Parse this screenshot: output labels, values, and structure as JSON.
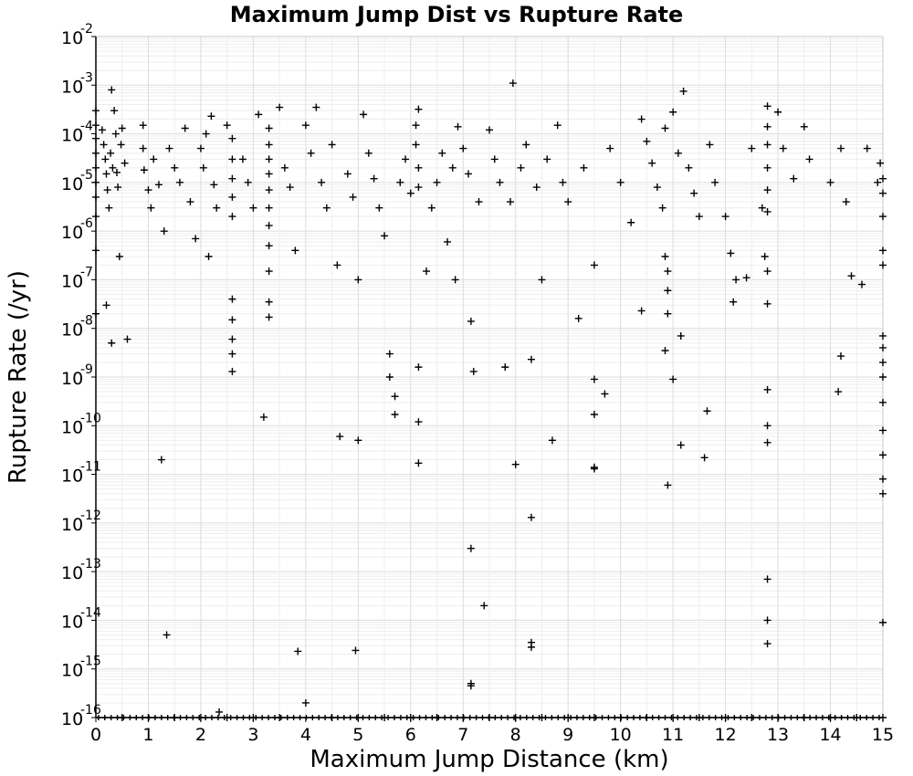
{
  "chart_data": {
    "type": "scatter",
    "title": "Maximum Jump Dist vs Rupture Rate",
    "xlabel": "Maximum Jump Distance (km)",
    "ylabel": "Rupture Rate (/yr)",
    "xlim": [
      0,
      15
    ],
    "ylim": [
      1e-16,
      0.01
    ],
    "yscale": "log",
    "grid": true,
    "marker": "+",
    "x_ticks": [
      "0",
      "1",
      "2",
      "3",
      "4",
      "5",
      "6",
      "7",
      "8",
      "9",
      "10",
      "11",
      "12",
      "13",
      "14",
      "15"
    ],
    "y_ticks": [
      {
        "base": "10",
        "exp": "-16"
      },
      {
        "base": "10",
        "exp": "-15"
      },
      {
        "base": "10",
        "exp": "-14"
      },
      {
        "base": "10",
        "exp": "-13"
      },
      {
        "base": "10",
        "exp": "-12"
      },
      {
        "base": "10",
        "exp": "-11"
      },
      {
        "base": "10",
        "exp": "-10"
      },
      {
        "base": "10",
        "exp": "-9"
      },
      {
        "base": "10",
        "exp": "-8"
      },
      {
        "base": "10",
        "exp": "-7"
      },
      {
        "base": "10",
        "exp": "-6"
      },
      {
        "base": "10",
        "exp": "-5"
      },
      {
        "base": "10",
        "exp": "-4"
      },
      {
        "base": "10",
        "exp": "-3"
      },
      {
        "base": "10",
        "exp": "-2"
      }
    ],
    "points": [
      [
        0.0,
        0.0003
      ],
      [
        0.0,
        0.00015
      ],
      [
        0.0,
        8e-05
      ],
      [
        0.0,
        4e-05
      ],
      [
        0.0,
        2e-05
      ],
      [
        0.0,
        1e-05
      ],
      [
        0.0,
        5e-06
      ],
      [
        0.0,
        2e-06
      ],
      [
        0.0,
        4e-07
      ],
      [
        0.0,
        2e-08
      ],
      [
        0.12,
        0.00012
      ],
      [
        0.15,
        6e-05
      ],
      [
        0.18,
        3e-05
      ],
      [
        0.2,
        1.5e-05
      ],
      [
        0.22,
        7e-06
      ],
      [
        0.25,
        3e-06
      ],
      [
        0.28,
        4e-05
      ],
      [
        0.3,
        0.0008
      ],
      [
        0.32,
        2e-05
      ],
      [
        0.35,
        0.0003
      ],
      [
        0.38,
        0.0001
      ],
      [
        0.4,
        1.6e-05
      ],
      [
        0.42,
        8e-06
      ],
      [
        0.45,
        3e-07
      ],
      [
        0.48,
        6e-05
      ],
      [
        0.5,
        0.00013
      ],
      [
        0.55,
        2.5e-05
      ],
      [
        0.6,
        6e-09
      ],
      [
        0.3,
        5e-09
      ],
      [
        0.2,
        3e-08
      ],
      [
        0.9,
        0.00015
      ],
      [
        0.9,
        5e-05
      ],
      [
        0.92,
        1.8e-05
      ],
      [
        1.0,
        7e-06
      ],
      [
        1.05,
        3e-06
      ],
      [
        1.1,
        3e-05
      ],
      [
        1.2,
        9e-06
      ],
      [
        1.25,
        2e-11
      ],
      [
        1.3,
        1e-06
      ],
      [
        1.35,
        5e-15
      ],
      [
        1.4,
        5e-05
      ],
      [
        1.5,
        2e-05
      ],
      [
        1.6,
        1e-05
      ],
      [
        1.7,
        0.00013
      ],
      [
        1.8,
        4e-06
      ],
      [
        1.9,
        7e-07
      ],
      [
        2.0,
        5e-05
      ],
      [
        2.05,
        2e-05
      ],
      [
        2.1,
        0.0001
      ],
      [
        2.15,
        3e-07
      ],
      [
        2.2,
        0.00023
      ],
      [
        2.25,
        9e-06
      ],
      [
        2.3,
        3e-06
      ],
      [
        2.35,
        1.3e-16
      ],
      [
        2.5,
        0.00015
      ],
      [
        2.6,
        8e-05
      ],
      [
        2.6,
        3e-05
      ],
      [
        2.6,
        1.2e-05
      ],
      [
        2.6,
        5e-06
      ],
      [
        2.6,
        2e-06
      ],
      [
        2.6,
        4e-08
      ],
      [
        2.6,
        1.5e-08
      ],
      [
        2.6,
        6e-09
      ],
      [
        2.6,
        3e-09
      ],
      [
        2.6,
        1.3e-09
      ],
      [
        2.8,
        3e-05
      ],
      [
        2.9,
        1e-05
      ],
      [
        3.0,
        3e-06
      ],
      [
        3.1,
        0.00025
      ],
      [
        3.2,
        1.5e-10
      ],
      [
        3.3,
        0.00013
      ],
      [
        3.3,
        6e-05
      ],
      [
        3.3,
        3e-05
      ],
      [
        3.3,
        1.5e-05
      ],
      [
        3.3,
        7e-06
      ],
      [
        3.3,
        3e-06
      ],
      [
        3.3,
        1.3e-06
      ],
      [
        3.3,
        5e-07
      ],
      [
        3.3,
        1.5e-07
      ],
      [
        3.3,
        3.5e-08
      ],
      [
        3.3,
        1.7e-08
      ],
      [
        3.5,
        0.00035
      ],
      [
        3.6,
        2e-05
      ],
      [
        3.7,
        8e-06
      ],
      [
        3.8,
        4e-07
      ],
      [
        3.85,
        2.3e-15
      ],
      [
        4.0,
        2e-16
      ],
      [
        4.0,
        0.00015
      ],
      [
        4.1,
        4e-05
      ],
      [
        4.2,
        0.00035
      ],
      [
        4.3,
        1e-05
      ],
      [
        4.4,
        3e-06
      ],
      [
        4.5,
        6e-05
      ],
      [
        4.6,
        2e-07
      ],
      [
        4.65,
        6e-11
      ],
      [
        4.8,
        1.5e-05
      ],
      [
        4.9,
        5e-06
      ],
      [
        4.95,
        2.4e-15
      ],
      [
        5.0,
        5e-11
      ],
      [
        5.0,
        1e-07
      ],
      [
        5.1,
        0.00025
      ],
      [
        5.2,
        4e-05
      ],
      [
        5.3,
        1.2e-05
      ],
      [
        5.4,
        3e-06
      ],
      [
        5.5,
        8e-07
      ],
      [
        5.6,
        3e-09
      ],
      [
        5.6,
        1e-09
      ],
      [
        5.7,
        4e-10
      ],
      [
        5.7,
        1.7e-10
      ],
      [
        5.8,
        1e-05
      ],
      [
        5.9,
        3e-05
      ],
      [
        6.0,
        6e-06
      ],
      [
        6.1,
        0.00015
      ],
      [
        6.1,
        6e-05
      ],
      [
        6.15,
        0.00032
      ],
      [
        6.15,
        2e-05
      ],
      [
        6.15,
        8e-06
      ],
      [
        6.15,
        1.6e-09
      ],
      [
        6.15,
        1.2e-10
      ],
      [
        6.15,
        1.7e-11
      ],
      [
        6.3,
        1.5e-07
      ],
      [
        6.4,
        3e-06
      ],
      [
        6.5,
        1e-05
      ],
      [
        6.6,
        4e-05
      ],
      [
        6.7,
        6e-07
      ],
      [
        6.8,
        2e-05
      ],
      [
        6.85,
        1e-07
      ],
      [
        6.9,
        0.00014
      ],
      [
        7.0,
        5e-05
      ],
      [
        7.1,
        1.5e-05
      ],
      [
        7.15,
        1.4e-08
      ],
      [
        7.15,
        3e-13
      ],
      [
        7.15,
        5e-16
      ],
      [
        7.15,
        4.5e-16
      ],
      [
        7.2,
        1.3e-09
      ],
      [
        7.3,
        4e-06
      ],
      [
        7.4,
        2e-14
      ],
      [
        7.5,
        0.00012
      ],
      [
        7.6,
        3e-05
      ],
      [
        7.7,
        1e-05
      ],
      [
        7.8,
        1.6e-09
      ],
      [
        7.9,
        4e-06
      ],
      [
        7.95,
        0.0011
      ],
      [
        8.0,
        1.6e-11
      ],
      [
        8.1,
        2e-05
      ],
      [
        8.2,
        6e-05
      ],
      [
        8.3,
        2.3e-09
      ],
      [
        8.3,
        1.3e-12
      ],
      [
        8.3,
        3.5e-15
      ],
      [
        8.3,
        2.8e-15
      ],
      [
        8.4,
        8e-06
      ],
      [
        8.5,
        1e-07
      ],
      [
        8.6,
        3e-05
      ],
      [
        8.7,
        5e-11
      ],
      [
        8.8,
        0.00015
      ],
      [
        8.9,
        1e-05
      ],
      [
        9.0,
        4e-06
      ],
      [
        9.2,
        1.6e-08
      ],
      [
        9.3,
        2e-05
      ],
      [
        9.5,
        9e-10
      ],
      [
        9.5,
        1.7e-10
      ],
      [
        9.5,
        1.4e-11
      ],
      [
        9.5,
        1.3e-11
      ],
      [
        9.5,
        2e-07
      ],
      [
        9.7,
        4.5e-10
      ],
      [
        9.8,
        5e-05
      ],
      [
        10.0,
        1e-05
      ],
      [
        10.2,
        1.5e-06
      ],
      [
        10.4,
        0.0002
      ],
      [
        10.4,
        2.3e-08
      ],
      [
        10.5,
        7e-05
      ],
      [
        10.6,
        2.5e-05
      ],
      [
        10.7,
        8e-06
      ],
      [
        10.8,
        3e-06
      ],
      [
        10.85,
        0.00013
      ],
      [
        10.85,
        3e-07
      ],
      [
        10.9,
        1.5e-07
      ],
      [
        10.9,
        6e-08
      ],
      [
        10.9,
        2e-08
      ],
      [
        10.85,
        3.5e-09
      ],
      [
        10.9,
        6e-12
      ],
      [
        11.0,
        9e-10
      ],
      [
        11.0,
        0.00028
      ],
      [
        11.1,
        4e-05
      ],
      [
        11.15,
        7e-09
      ],
      [
        11.15,
        4e-11
      ],
      [
        11.2,
        0.00075
      ],
      [
        11.3,
        2e-05
      ],
      [
        11.4,
        6e-06
      ],
      [
        11.5,
        2e-06
      ],
      [
        11.6,
        2.2e-11
      ],
      [
        11.65,
        2e-10
      ],
      [
        11.7,
        6e-05
      ],
      [
        11.8,
        1e-05
      ],
      [
        12.0,
        2e-06
      ],
      [
        12.1,
        3.5e-07
      ],
      [
        12.15,
        3.5e-08
      ],
      [
        12.2,
        1e-07
      ],
      [
        12.4,
        1.1e-07
      ],
      [
        12.5,
        5e-05
      ],
      [
        12.7,
        3e-06
      ],
      [
        12.75,
        3e-07
      ],
      [
        12.8,
        0.00037
      ],
      [
        12.8,
        0.00014
      ],
      [
        12.8,
        6e-05
      ],
      [
        12.8,
        2e-05
      ],
      [
        12.8,
        7e-06
      ],
      [
        12.8,
        2.5e-06
      ],
      [
        12.8,
        1.5e-07
      ],
      [
        12.8,
        3.2e-08
      ],
      [
        12.8,
        5.5e-10
      ],
      [
        12.8,
        1e-10
      ],
      [
        12.8,
        4.5e-11
      ],
      [
        12.8,
        7e-14
      ],
      [
        12.8,
        1e-14
      ],
      [
        12.8,
        3.3e-15
      ],
      [
        13.0,
        0.00028
      ],
      [
        13.1,
        5e-05
      ],
      [
        13.3,
        1.2e-05
      ],
      [
        13.5,
        0.00014
      ],
      [
        13.6,
        3e-05
      ],
      [
        14.0,
        1e-05
      ],
      [
        14.15,
        5e-10
      ],
      [
        14.2,
        2.7e-09
      ],
      [
        14.2,
        5e-05
      ],
      [
        14.3,
        4e-06
      ],
      [
        14.4,
        1.2e-07
      ],
      [
        14.6,
        8e-08
      ],
      [
        14.7,
        5e-05
      ],
      [
        14.9,
        1e-05
      ],
      [
        14.95,
        2.5e-05
      ],
      [
        15.0,
        1.2e-05
      ],
      [
        15.0,
        6e-06
      ],
      [
        15.0,
        2e-06
      ],
      [
        15.0,
        4e-07
      ],
      [
        15.0,
        2e-07
      ],
      [
        15.0,
        7e-09
      ],
      [
        15.0,
        4e-09
      ],
      [
        15.0,
        2e-09
      ],
      [
        15.0,
        1e-09
      ],
      [
        15.0,
        3e-10
      ],
      [
        15.0,
        8e-11
      ],
      [
        15.0,
        2.5e-11
      ],
      [
        15.0,
        8e-12
      ],
      [
        15.0,
        4e-12
      ],
      [
        15.0,
        9e-15
      ],
      [
        0.5,
        1e-16
      ],
      [
        1.0,
        1e-16
      ],
      [
        1.5,
        1e-16
      ],
      [
        2.0,
        1e-16
      ],
      [
        2.5,
        1e-16
      ],
      [
        3.0,
        1e-16
      ],
      [
        3.5,
        1e-16
      ],
      [
        4.5,
        1e-16
      ],
      [
        5.0,
        1e-16
      ],
      [
        5.5,
        1e-16
      ],
      [
        6.0,
        1e-16
      ],
      [
        6.5,
        1e-16
      ],
      [
        7.0,
        1e-16
      ],
      [
        7.5,
        1e-16
      ],
      [
        8.0,
        1e-16
      ],
      [
        8.5,
        1e-16
      ],
      [
        9.0,
        1e-16
      ],
      [
        9.5,
        1e-16
      ],
      [
        10.0,
        1e-16
      ],
      [
        10.5,
        1e-16
      ],
      [
        11.0,
        1e-16
      ],
      [
        11.5,
        1e-16
      ],
      [
        12.0,
        1e-16
      ],
      [
        12.5,
        1e-16
      ],
      [
        13.0,
        1e-16
      ],
      [
        13.5,
        1e-16
      ],
      [
        14.0,
        1e-16
      ],
      [
        14.5,
        1e-16
      ],
      [
        15.0,
        1e-16
      ]
    ]
  }
}
